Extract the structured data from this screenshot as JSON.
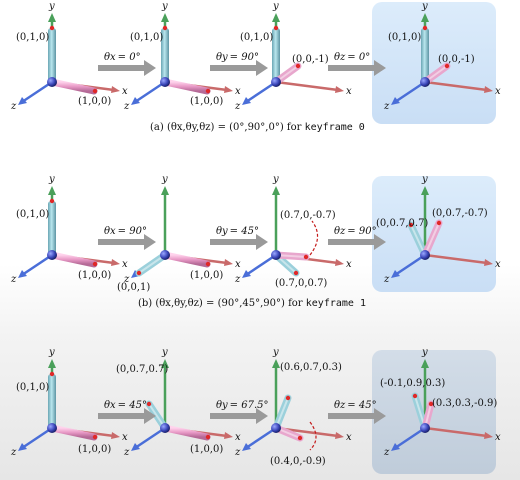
{
  "axes": {
    "x": "x",
    "y": "y",
    "z": "z"
  },
  "theta_symbols": {
    "x": "θx",
    "y": "θy",
    "z": "θz"
  },
  "rows": [
    {
      "steps": [
        {
          "axis": "x",
          "value": "= 0°"
        },
        {
          "axis": "y",
          "value": "= 90°"
        },
        {
          "axis": "z",
          "value": "= 0°"
        }
      ],
      "labels": {
        "p0_y": "(0,1,0)",
        "p0_x": "(1,0,0)",
        "p1_y": "(0,1,0)",
        "p1_x": "(1,0,0)",
        "p2_y": "(0,1,0)",
        "p2_x": "(0,0,-1)",
        "p3_y": "(0,1,0)",
        "p3_x": "(0,0,-1)"
      },
      "caption": {
        "prefix": "(a) (θx,θy,θz) = (0°,90°,0°) for ",
        "keyword": "keyframe 0"
      }
    },
    {
      "steps": [
        {
          "axis": "x",
          "value": "= 90°"
        },
        {
          "axis": "y",
          "value": "= 45°"
        },
        {
          "axis": "z",
          "value": "= 90°"
        }
      ],
      "labels": {
        "p0_y": "(0,1,0)",
        "p0_x": "(1,0,0)",
        "p1_z": "(0,0,1)",
        "p1_x": "(1,0,0)",
        "p2_a": "(0.7,0,-0.7)",
        "p2_b": "(0.7,0,0.7)",
        "p3_a": "(0,0.7,0.7)",
        "p3_b": "(0,0.7,-0.7)"
      },
      "caption": {
        "prefix": "(b) (θx,θy,θz) = (90°,45°,90°) for ",
        "keyword": "keyframe 1"
      }
    },
    {
      "steps": [
        {
          "axis": "x",
          "value": "= 45°"
        },
        {
          "axis": "y",
          "value": "= 67.5°"
        },
        {
          "axis": "z",
          "value": "= 45°"
        }
      ],
      "labels": {
        "p0_y": "(0,1,0)",
        "p0_x": "(1,0,0)",
        "p1_a": "(0,0.7,0.7)",
        "p1_x": "(1,0,0)",
        "p2_a": "(0.6,0.7,0.3)",
        "p2_b": "(0.4,0,-0.9)",
        "p3_a": "(-0.1,0.9,0.3)",
        "p3_b": "(0.3,0.3,-0.9)"
      }
    }
  ]
}
